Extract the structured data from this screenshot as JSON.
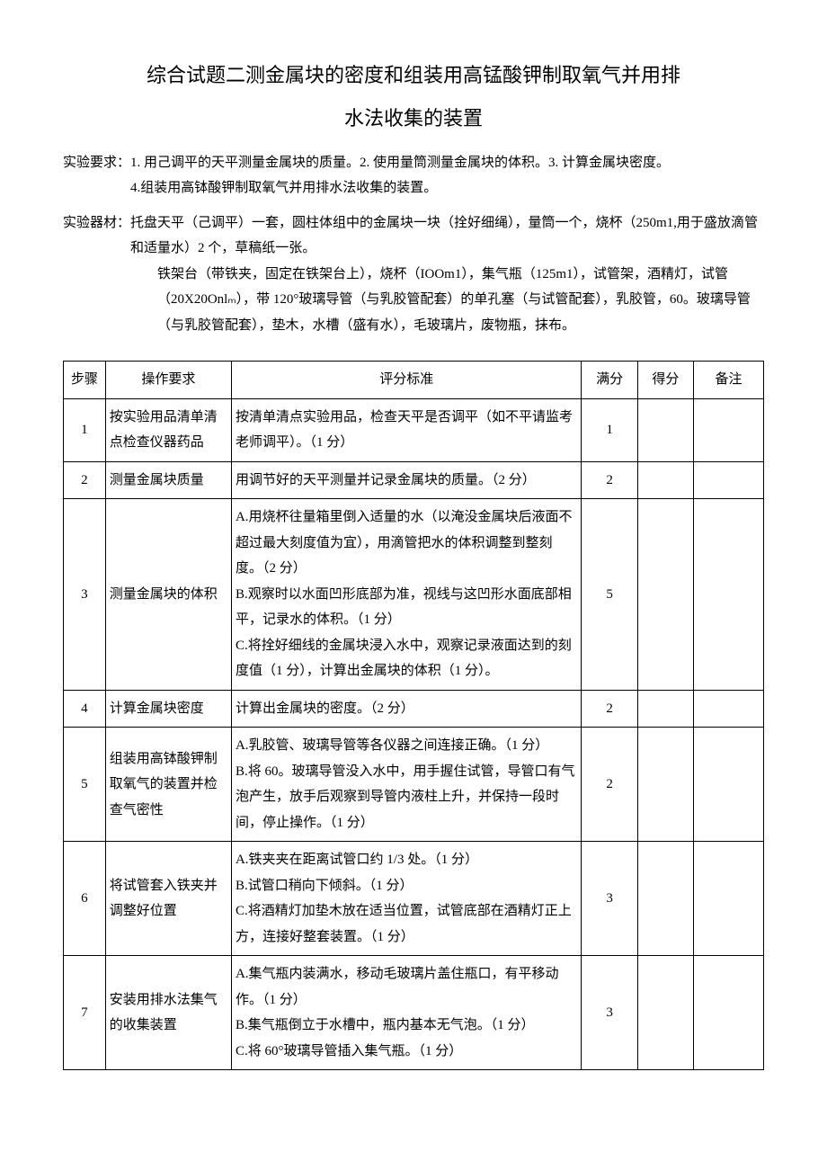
{
  "title_line1": "综合试题二测金属块的密度和组装用高锰酸钾制取氧气并用排",
  "title_line2": "水法收集的装置",
  "req_label": "实验要求：",
  "req_body1": "1. 用己调平的天平测量金属块的质量。2. 使用量筒测量金属块的体积。3. 计算金属块密度。",
  "req_body2": "4.组装用高钵酸钾制取氧气并用排水法收集的装置。",
  "mat_label": "实验器材：",
  "mat_body1": "托盘天平（己调平）一套，圆柱体组中的金属块一块（拴好细绳），量筒一个，烧杯（250m1,用于盛放滴管和适量水）2 个，草稿纸一张。",
  "mat_body2": "铁架台（带铁夹，固定在铁架台上），烧杯（IOOm1），集气瓶（125m1），试管架，酒精灯，试管（20X20Onlₘ），带 120°玻璃导管（与乳胶管配套）的单孔塞（与试管配套），乳胶管，60。玻璃导管（与乳胶管配套），垫木，水槽（盛有水），毛玻璃片，废物瓶，抹布。",
  "headers": {
    "step": "步骤",
    "op": "操作要求",
    "std": "评分标准",
    "full": "满分",
    "score": "得分",
    "note": "备注"
  },
  "rows": [
    {
      "step": "1",
      "op": "按实验用品清单清点检查仪器药品",
      "std": "按清单清点实验用品，检查天平是否调平（如不平请监考老师调平）。（1 分）",
      "full": "1"
    },
    {
      "step": "2",
      "op": "测量金属块质量",
      "std": "用调节好的天平测量并记录金属块的质量。（2 分）",
      "full": "2"
    },
    {
      "step": "3",
      "op": "测量金属块的体积",
      "std": "A.用烧杯往量箱里倒入适量的水（以淹没金属块后液面不超过最大刻度值为宜），用滴管把水的体积调整到整刻度。（2 分）\nB.观察时以水面凹形底部为准，视线与这凹形水面底部相平，记录水的体积。（1 分）\nC.将拴好细线的金属块浸入水中，观察记录液面达到的刻度值（1 分），计算出金属块的体积（1 分）。",
      "full": "5"
    },
    {
      "step": "4",
      "op": "计算金属块密度",
      "std": "计算出金属块的密度。（2 分）",
      "full": "2"
    },
    {
      "step": "5",
      "op": "组装用高钵酸钾制取氧气的装置并检查气密性",
      "std": "A.乳胶管、玻璃导管等各仪器之间连接正确。（1 分）\nB.将 60。玻璃导管没入水中，用手握住试管，导管口有气泡产生，放手后观察到导管内液柱上升，并保持一段时间，停止操作。（1 分）",
      "full": "2"
    },
    {
      "step": "6",
      "op": "将试管套入铁夹并调整好位置",
      "std": "A.铁夹夹在距离试管口约 1/3 处。（1 分）\nB.试管口稍向下倾斜。（1 分）\nC.将酒精灯加垫木放在适当位置，试管底部在酒精灯正上方，连接好整套装置。（1 分）",
      "full": "3"
    },
    {
      "step": "7",
      "op": "安装用排水法集气的收集装置",
      "std": "A.集气瓶内装满水，移动毛玻璃片盖住瓶口，有平移动作。（1 分）\nB.集气瓶倒立于水槽中，瓶内基本无气泡。（1 分）\nC.将 60°玻璃导管插入集气瓶。（1 分）",
      "full": "3"
    }
  ]
}
